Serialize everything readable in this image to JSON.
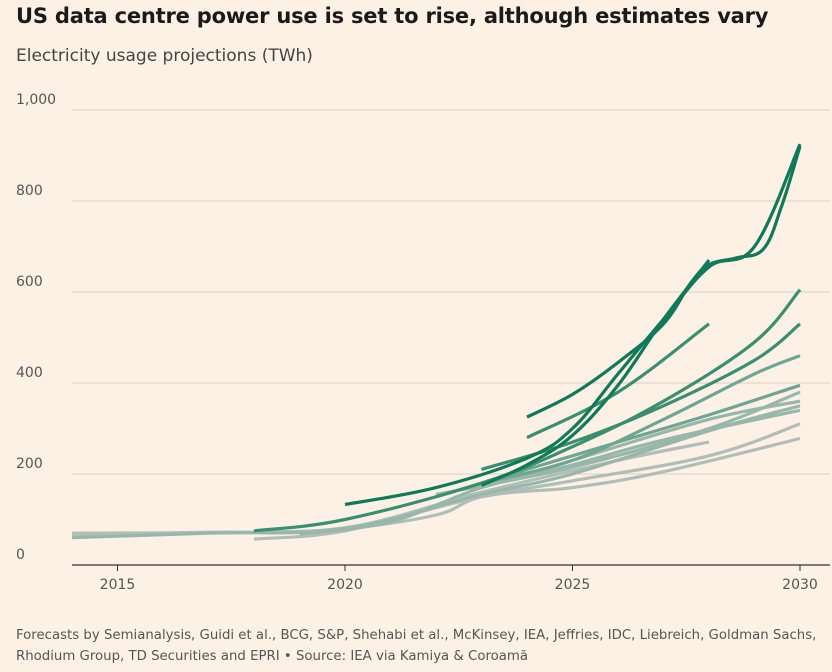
{
  "header": {
    "title": "US data centre power use is set to rise, although estimates vary",
    "subtitle": "Electricity usage projections (TWh)"
  },
  "footer": {
    "note": "Forecasts by Semianalysis, Guidi et al., BCG, S&P, Shehabi et al., McKinsey, IEA, Jeffries, IDC, Liebreich, Goldman Sachs, Rhodium Group, TD Securities and EPRI • Source: IEA via Kamiya & Coroamă"
  },
  "colors": {
    "background": "#FDF1E6",
    "grid": "#D8CFC6",
    "dark_green": "#0F7A57",
    "mid_green": "#3A8F70",
    "light_green": "#6FA593",
    "gray_green": "#98B7AB",
    "gray": "#B1BEB7"
  },
  "chart_data": {
    "type": "line",
    "title": "US data centre power use is set to rise, although estimates vary",
    "subtitle": "Electricity usage projections (TWh)",
    "xlim": [
      2014,
      2030
    ],
    "ylim": [
      0,
      1000
    ],
    "x_ticks": [
      "2015",
      "2020",
      "2025",
      "2030"
    ],
    "y_ticks": [
      "0",
      "200",
      "400",
      "600",
      "800",
      "1,000"
    ],
    "grid": "horizontal",
    "series": [
      {
        "color": "gray",
        "points": [
          [
            2014,
            70
          ],
          [
            2017,
            72
          ],
          [
            2020,
            82
          ],
          [
            2023,
            160
          ],
          [
            2026,
            230
          ],
          [
            2028,
            270
          ]
        ]
      },
      {
        "color": "gray",
        "points": [
          [
            2018,
            57
          ],
          [
            2020,
            75
          ],
          [
            2023,
            150
          ],
          [
            2025,
            170
          ],
          [
            2027,
            205
          ],
          [
            2030,
            278
          ]
        ]
      },
      {
        "color": "gray",
        "points": [
          [
            2014,
            66
          ],
          [
            2018,
            72
          ],
          [
            2020,
            80
          ],
          [
            2022,
            110
          ],
          [
            2023,
            150
          ],
          [
            2025,
            185
          ],
          [
            2028,
            240
          ],
          [
            2030,
            310
          ]
        ]
      },
      {
        "color": "gray_green",
        "points": [
          [
            2014,
            60
          ],
          [
            2017,
            70
          ],
          [
            2020,
            80
          ],
          [
            2023,
            155
          ],
          [
            2025,
            200
          ],
          [
            2028,
            295
          ],
          [
            2030,
            350
          ]
        ]
      },
      {
        "color": "gray_green",
        "points": [
          [
            2019,
            68
          ],
          [
            2021,
            95
          ],
          [
            2023,
            170
          ],
          [
            2025,
            220
          ],
          [
            2027,
            275
          ],
          [
            2030,
            340
          ]
        ]
      },
      {
        "color": "gray_green",
        "points": [
          [
            2022,
            155
          ],
          [
            2025,
            215
          ],
          [
            2028,
            300
          ],
          [
            2030,
            380
          ]
        ]
      },
      {
        "color": "gray_green",
        "points": [
          [
            2023,
            170
          ],
          [
            2025,
            230
          ],
          [
            2028,
            320
          ],
          [
            2030,
            360
          ]
        ]
      },
      {
        "color": "light_green",
        "points": [
          [
            2022,
            150
          ],
          [
            2024,
            210
          ],
          [
            2026,
            270
          ],
          [
            2028,
            330
          ],
          [
            2030,
            395
          ]
        ]
      },
      {
        "color": "light_green",
        "points": [
          [
            2023,
            180
          ],
          [
            2025,
            230
          ],
          [
            2027,
            320
          ],
          [
            2029,
            420
          ],
          [
            2030,
            460
          ]
        ]
      },
      {
        "color": "mid_green",
        "points": [
          [
            2023,
            210
          ],
          [
            2025,
            270
          ],
          [
            2027,
            350
          ],
          [
            2029,
            450
          ],
          [
            2030,
            530
          ]
        ]
      },
      {
        "color": "mid_green",
        "points": [
          [
            2024,
            280
          ],
          [
            2026,
            380
          ],
          [
            2028,
            530
          ]
        ]
      },
      {
        "color": "mid_green",
        "points": [
          [
            2018,
            75
          ],
          [
            2020,
            100
          ],
          [
            2023,
            180
          ],
          [
            2025,
            260
          ],
          [
            2027,
            360
          ],
          [
            2029,
            490
          ],
          [
            2030,
            605
          ]
        ]
      },
      {
        "color": "dark_green",
        "points": [
          [
            2023,
            175
          ],
          [
            2024,
            220
          ],
          [
            2025,
            285
          ],
          [
            2026,
            395
          ],
          [
            2027,
            540
          ],
          [
            2028,
            670
          ]
        ]
      },
      {
        "color": "dark_green",
        "points": [
          [
            2020,
            133
          ],
          [
            2022,
            170
          ],
          [
            2024,
            235
          ],
          [
            2025,
            300
          ],
          [
            2026,
            420
          ],
          [
            2027,
            540
          ],
          [
            2028,
            655
          ],
          [
            2029,
            700
          ],
          [
            2030,
            925
          ]
        ]
      },
      {
        "color": "dark_green",
        "points": [
          [
            2024,
            325
          ],
          [
            2025,
            375
          ],
          [
            2026,
            445
          ],
          [
            2027,
            530
          ],
          [
            2027.6,
            620
          ],
          [
            2028,
            660
          ],
          [
            2028.6,
            675
          ],
          [
            2029.2,
            695
          ],
          [
            2029.6,
            790
          ],
          [
            2030,
            920
          ]
        ]
      }
    ]
  }
}
